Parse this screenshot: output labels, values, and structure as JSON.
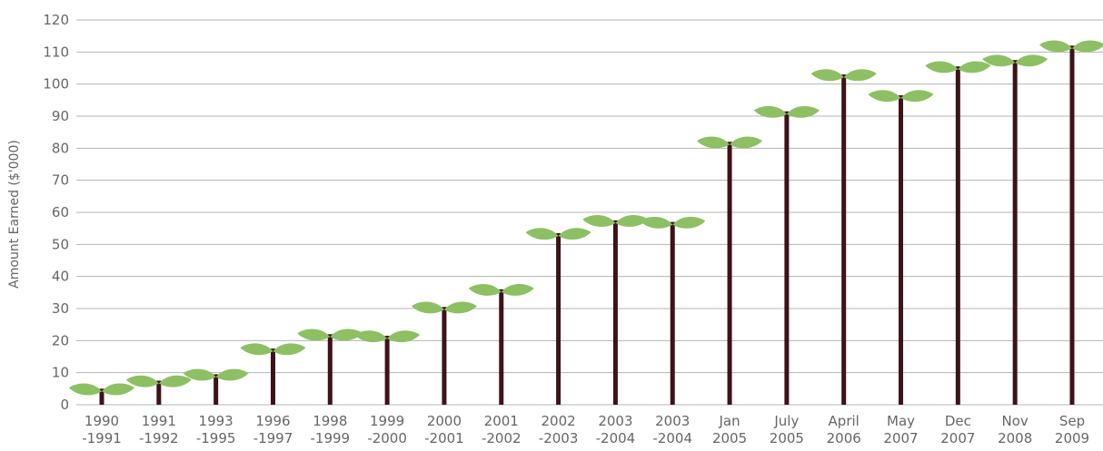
{
  "chart_data": {
    "type": "bar",
    "ylabel": "Amount Earned ($'000)",
    "xlabel": "",
    "ylim": [
      0,
      120
    ],
    "yticks": [
      0,
      10,
      20,
      30,
      40,
      50,
      60,
      70,
      80,
      90,
      100,
      110,
      120
    ],
    "grid": true,
    "categories": [
      [
        "1990",
        "-1991"
      ],
      [
        "1991",
        "-1992"
      ],
      [
        "1993",
        "-1995"
      ],
      [
        "1996",
        "-1997"
      ],
      [
        "1998",
        "-1999"
      ],
      [
        "1999",
        "-2000"
      ],
      [
        "2000",
        "-2001"
      ],
      [
        "2001",
        "-2002"
      ],
      [
        "2002",
        "-2003"
      ],
      [
        "2003",
        "-2004"
      ],
      [
        "2003",
        "-2004"
      ],
      [
        "Jan",
        "2005"
      ],
      [
        "July",
        "2005"
      ],
      [
        "April",
        "2006"
      ],
      [
        "May",
        "2007"
      ],
      [
        "Dec",
        "2007"
      ],
      [
        "Nov",
        "2008"
      ],
      [
        "Sep",
        "2009"
      ]
    ],
    "values": [
      5,
      7.5,
      9.5,
      17.5,
      22,
      21.5,
      30.5,
      36,
      53.5,
      57.5,
      57,
      82,
      91.5,
      103,
      96.5,
      105.5,
      107.5,
      112
    ],
    "colors": {
      "stem": "#3d1218",
      "leaf": "#8cc063",
      "grid": "#b5b5b5",
      "text": "#666666"
    }
  }
}
